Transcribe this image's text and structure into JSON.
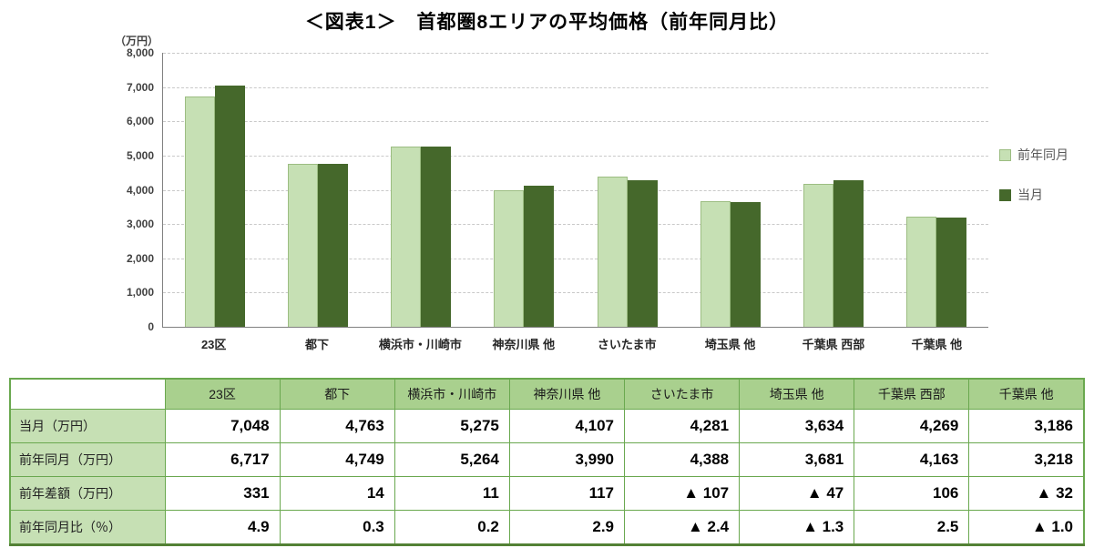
{
  "title": "＜図表1＞　首都圏8エリアの平均価格（前年同月比）",
  "chart_data": {
    "type": "bar",
    "title": "＜図表1＞　首都圏8エリアの平均価格（前年同月比）",
    "unit_label": "（万円）",
    "categories": [
      "23区",
      "都下",
      "横浜市・川崎市",
      "神奈川県 他",
      "さいたま市",
      "埼玉県 他",
      "千葉県 西部",
      "千葉県 他"
    ],
    "series": [
      {
        "name": "前年同月",
        "color": "#c6e0b4",
        "values": [
          6717,
          4749,
          5264,
          3990,
          4388,
          3681,
          4163,
          3218
        ]
      },
      {
        "name": "当月",
        "color": "#45682b",
        "values": [
          7048,
          4763,
          5275,
          4107,
          4281,
          3634,
          4269,
          3186
        ]
      }
    ],
    "ylim": [
      0,
      8000
    ],
    "ytick_step": 1000,
    "grid": true,
    "legend_position": "right"
  },
  "table": {
    "columns": [
      "23区",
      "都下",
      "横浜市・川崎市",
      "神奈川県 他",
      "さいたま市",
      "埼玉県 他",
      "千葉県 西部",
      "千葉県 他"
    ],
    "rows": [
      {
        "label": "当月（万円）",
        "values": [
          "7,048",
          "4,763",
          "5,275",
          "4,107",
          "4,281",
          "3,634",
          "4,269",
          "3,186"
        ]
      },
      {
        "label": "前年同月（万円）",
        "values": [
          "6,717",
          "4,749",
          "5,264",
          "3,990",
          "4,388",
          "3,681",
          "4,163",
          "3,218"
        ]
      },
      {
        "label": "前年差額（万円）",
        "values": [
          "331",
          "14",
          "11",
          "117",
          "▲ 107",
          "▲ 47",
          "106",
          "▲ 32"
        ]
      },
      {
        "label": "前年同月比（％）",
        "values": [
          "4.9",
          "0.3",
          "0.2",
          "2.9",
          "▲ 2.4",
          "▲ 1.3",
          "2.5",
          "▲ 1.0"
        ]
      }
    ]
  },
  "colors": {
    "prev_year_bar": "#c6e0b4",
    "current_month_bar": "#45682b",
    "table_header_bg": "#a9d08e",
    "table_label_bg": "#c6e0b4",
    "table_border": "#6aa84f"
  }
}
